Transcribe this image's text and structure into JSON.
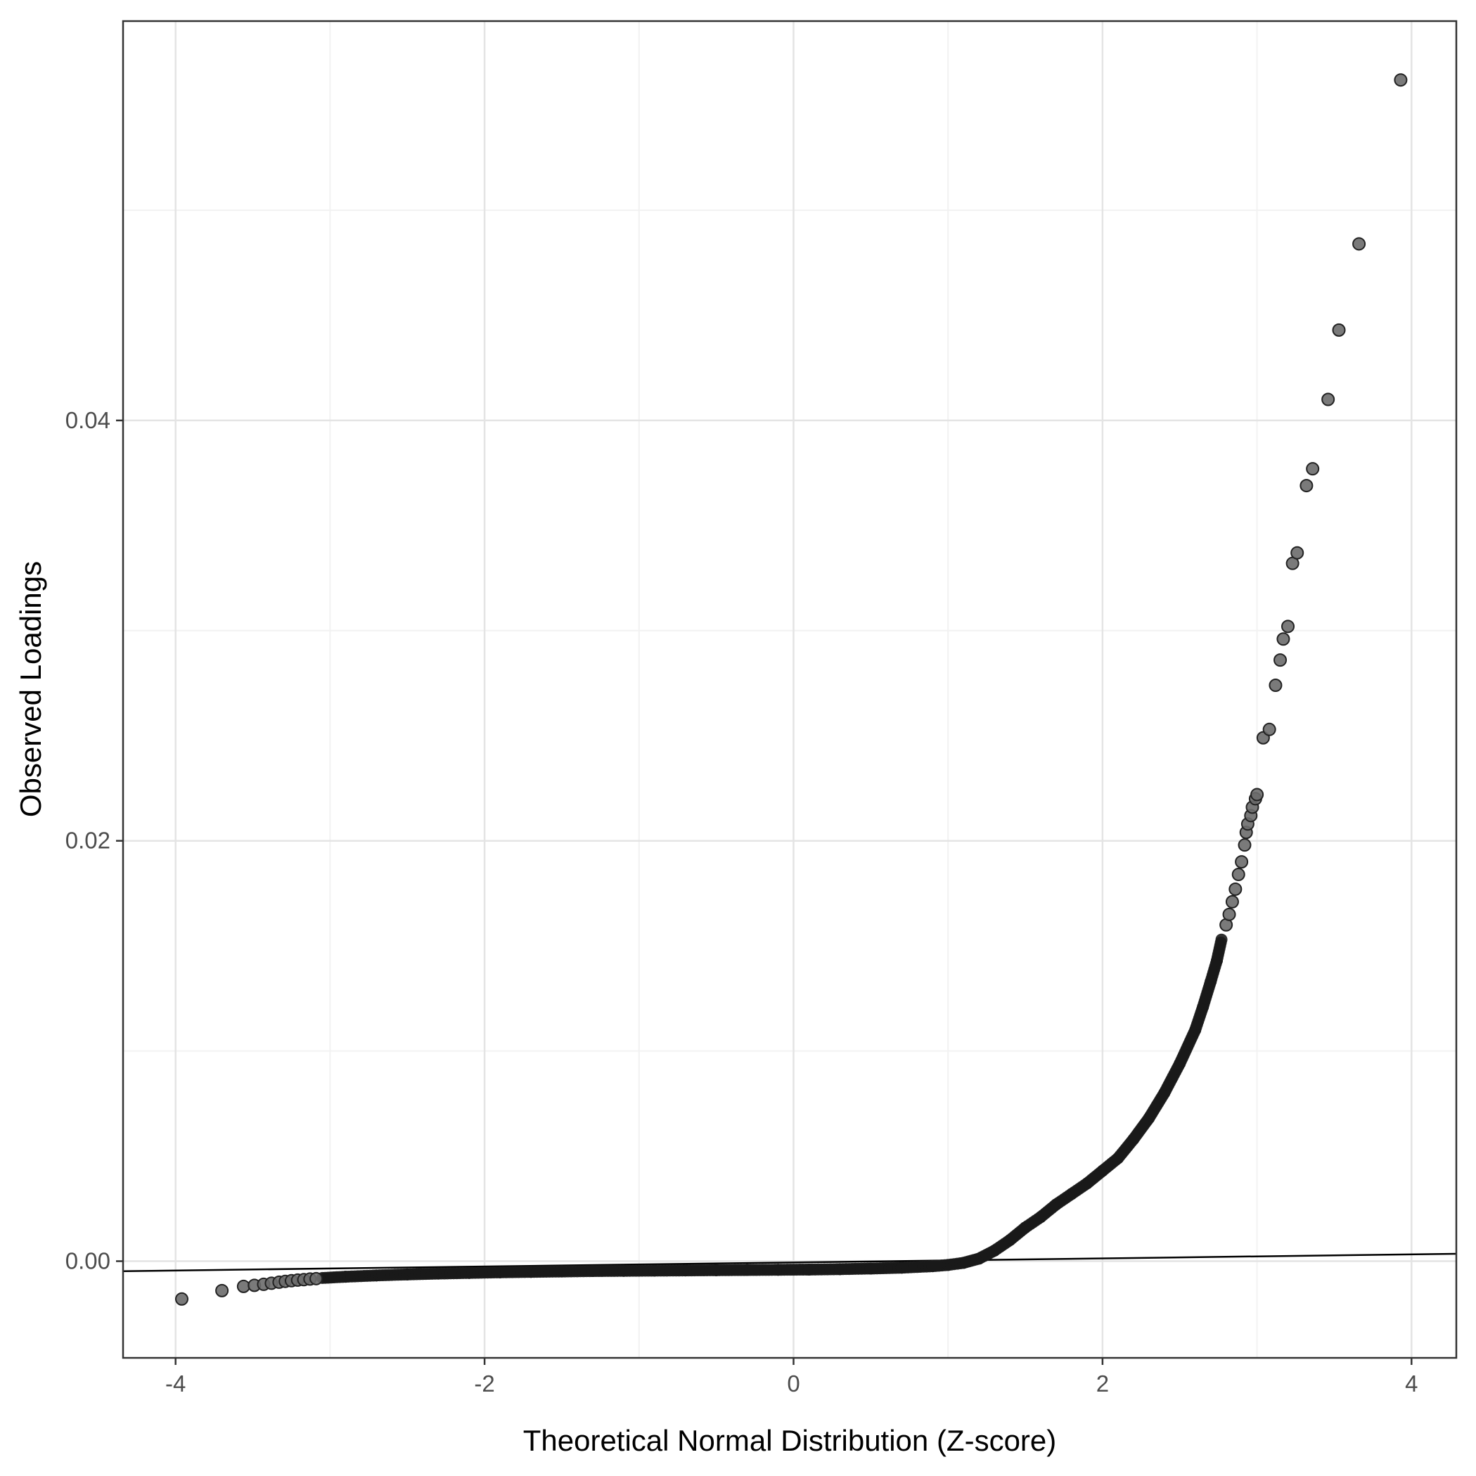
{
  "figure": {
    "background": "#ffffff"
  },
  "chart_data": {
    "type": "scatter",
    "title": "",
    "xlabel": "Theoretical Normal Distribution (Z-score)",
    "ylabel": "Observed Loadings",
    "xlim": [
      -4.34,
      4.29
    ],
    "ylim": [
      -0.0046,
      0.059
    ],
    "x_ticks": [
      -4,
      -2,
      0,
      2,
      4
    ],
    "x_tick_labels": [
      "-4",
      "-2",
      "0",
      "2",
      "4"
    ],
    "y_ticks": [
      0.0,
      0.02,
      0.04
    ],
    "y_tick_labels": [
      "0.00",
      "0.02",
      "0.04"
    ],
    "x_minor_ticks": [
      -3,
      -1,
      1,
      3
    ],
    "y_minor_ticks": [
      0.01,
      0.03,
      0.05
    ],
    "grid": true,
    "legend": false,
    "reference_line": {
      "intercept": -6e-05,
      "slope": 9.6e-05
    },
    "dense_curve": [
      [
        -3.05,
        -0.0008
      ],
      [
        -2.9,
        -0.00074
      ],
      [
        -2.7,
        -0.00068
      ],
      [
        -2.5,
        -0.00063
      ],
      [
        -2.3,
        -0.00059
      ],
      [
        -2.1,
        -0.00056
      ],
      [
        -1.9,
        -0.00053
      ],
      [
        -1.7,
        -0.00051
      ],
      [
        -1.5,
        -0.00049
      ],
      [
        -1.3,
        -0.00047
      ],
      [
        -1.1,
        -0.00046
      ],
      [
        -0.9,
        -0.00045
      ],
      [
        -0.7,
        -0.00044
      ],
      [
        -0.5,
        -0.00043
      ],
      [
        -0.3,
        -0.00042
      ],
      [
        -0.1,
        -0.00041
      ],
      [
        0.1,
        -0.0004
      ],
      [
        0.3,
        -0.00038
      ],
      [
        0.5,
        -0.00035
      ],
      [
        0.7,
        -0.00031
      ],
      [
        0.9,
        -0.00024
      ],
      [
        1.0,
        -0.00018
      ],
      [
        1.1,
        -8e-05
      ],
      [
        1.2,
        0.00012
      ],
      [
        1.3,
        0.0005
      ],
      [
        1.4,
        0.001
      ],
      [
        1.5,
        0.0016
      ],
      [
        1.6,
        0.0021
      ],
      [
        1.7,
        0.0027
      ],
      [
        1.8,
        0.0032
      ],
      [
        1.9,
        0.0037
      ],
      [
        2.0,
        0.0043
      ],
      [
        2.1,
        0.0049
      ],
      [
        2.2,
        0.0058
      ],
      [
        2.3,
        0.0068
      ],
      [
        2.4,
        0.008
      ],
      [
        2.5,
        0.0094
      ],
      [
        2.6,
        0.011
      ],
      [
        2.65,
        0.0121
      ],
      [
        2.7,
        0.0133
      ],
      [
        2.74,
        0.0143
      ],
      [
        2.77,
        0.0153
      ]
    ],
    "points": [
      [
        -3.96,
        -0.0018
      ],
      [
        -3.7,
        -0.0014
      ],
      [
        -3.56,
        -0.0012
      ],
      [
        -3.49,
        -0.00115
      ],
      [
        -3.43,
        -0.0011
      ],
      [
        -3.38,
        -0.00105
      ],
      [
        -3.33,
        -0.001
      ],
      [
        -3.29,
        -0.00096
      ],
      [
        -3.25,
        -0.00093
      ],
      [
        -3.21,
        -0.0009
      ],
      [
        -3.17,
        -0.00088
      ],
      [
        -3.13,
        -0.00085
      ],
      [
        -3.09,
        -0.00083
      ],
      [
        2.8,
        0.016
      ],
      [
        2.82,
        0.0165
      ],
      [
        2.84,
        0.0171
      ],
      [
        2.86,
        0.0177
      ],
      [
        2.88,
        0.0184
      ],
      [
        2.9,
        0.019
      ],
      [
        2.92,
        0.0198
      ],
      [
        2.93,
        0.0204
      ],
      [
        2.94,
        0.0208
      ],
      [
        2.96,
        0.0212
      ],
      [
        2.97,
        0.0216
      ],
      [
        2.99,
        0.022
      ],
      [
        3.0,
        0.0222
      ],
      [
        3.04,
        0.0249
      ],
      [
        3.08,
        0.0253
      ],
      [
        3.12,
        0.0274
      ],
      [
        3.15,
        0.0286
      ],
      [
        3.17,
        0.0296
      ],
      [
        3.2,
        0.0302
      ],
      [
        3.23,
        0.0332
      ],
      [
        3.26,
        0.0337
      ],
      [
        3.32,
        0.0369
      ],
      [
        3.36,
        0.0377
      ],
      [
        3.46,
        0.041
      ],
      [
        3.53,
        0.0443
      ],
      [
        3.66,
        0.0484
      ],
      [
        3.93,
        0.0562
      ]
    ],
    "style": {
      "point_fill": "#6b6b6b",
      "point_stroke": "#222222",
      "dense_fill": "#1a1a1a",
      "panel_border": "#333333",
      "grid_major": "#e4e4e4",
      "grid_minor": "#f2f2f2",
      "line_color": "#000000",
      "tick_color": "#333333",
      "tick_label_color": "#4d4d4d"
    }
  }
}
